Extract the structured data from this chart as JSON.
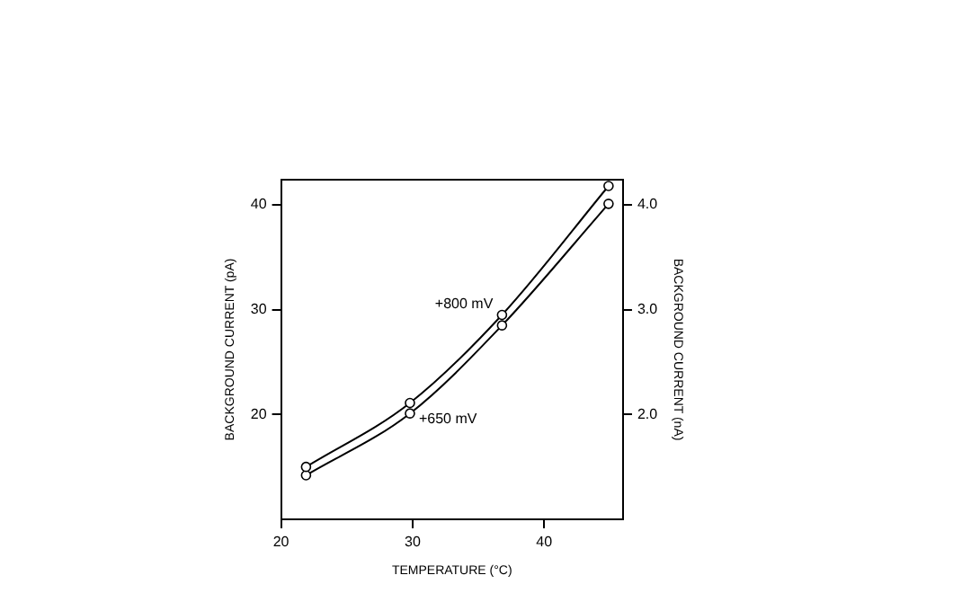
{
  "chart_data": {
    "type": "line",
    "xlabel": "TEMPERATURE (°C)",
    "ylabel": "BACKGROUND CURRENT (pA)",
    "y2label": "BACKGROUND CURRENT (nA)",
    "x": [
      21.9,
      29.8,
      36.8,
      44.9
    ],
    "series": [
      {
        "name": "+800 mV",
        "color": "#000000",
        "values": [
          15.0,
          21.1,
          29.5,
          41.8
        ]
      },
      {
        "name": "+650 mV",
        "color": "#000000",
        "values": [
          14.2,
          20.1,
          28.5,
          40.1
        ]
      }
    ],
    "xlim": [
      20,
      46
    ],
    "xticks": [
      20,
      30,
      40
    ],
    "ylim": [
      10,
      42.4
    ],
    "yticks": [
      20,
      30,
      40
    ],
    "y2lim": [
      1.0,
      4.24
    ],
    "y2ticks": [
      {
        "value": 2,
        "label": "2.0"
      },
      {
        "value": 3,
        "label": "3.0"
      },
      {
        "value": 4,
        "label": "4.0"
      }
    ],
    "grid": false,
    "legend": false,
    "marker": "circle",
    "line_style": "solid"
  }
}
